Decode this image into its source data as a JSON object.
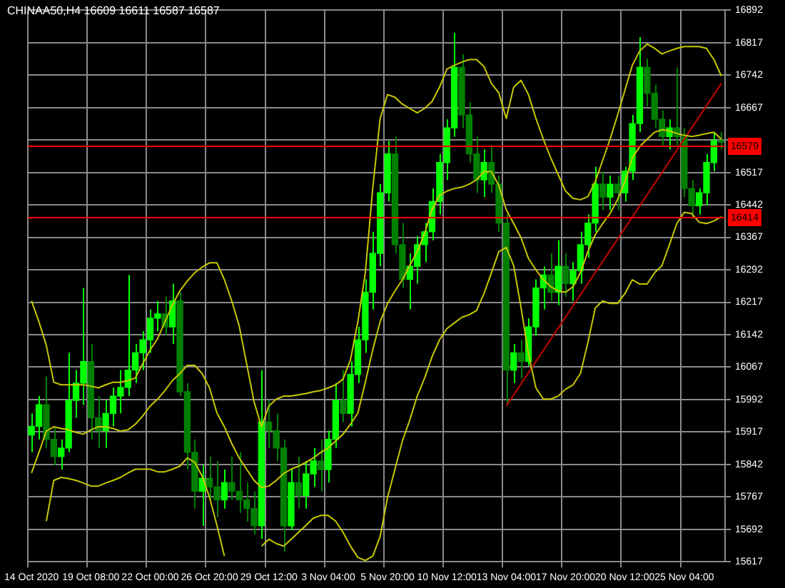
{
  "chart_data": {
    "type": "candlestick",
    "title": "CHINAA50,H4 16609 16611 16587 16587",
    "colors": [
      "#00ff00",
      "#00ff00",
      "#008000",
      "#008000",
      "#00ff00",
      "#00ff00",
      "#00ff00",
      "#00ff00",
      "#008000",
      "#008000",
      "#00ff00",
      "#00ff00",
      "#00ff00",
      "#00ff00",
      "#00ff00",
      "#00ff00",
      "#00ff00",
      "#00ff00",
      "#008000",
      "#00ff00",
      "#008000",
      "#008000",
      "#008000",
      "#00ff00",
      "#008000",
      "#008000",
      "#00ff00",
      "#008000",
      "#008000",
      "#008000",
      "#008000",
      "#00ff00",
      "#008000",
      "#008000",
      "#008000",
      "#00ff00",
      "#008000",
      "#00ff00",
      "#00ff00",
      "#008000",
      "#00ff00",
      "#00ff00",
      "#008000",
      "#00ff00",
      "#00ff00",
      "#00ff00",
      "#00ff00",
      "#00ff00",
      "#00ff00",
      "#008000",
      "#008000",
      "#00ff00",
      "#00ff00",
      "#00ff00",
      "#00ff00",
      "#00ff00",
      "#00ff00",
      "#00ff00",
      "#008000",
      "#008000",
      "#008000",
      "#00ff00",
      "#008000",
      "#008000",
      "#008000",
      "#00ff00",
      "#008000",
      "#00ff00",
      "#00ff00",
      "#00ff00",
      "#008000",
      "#00ff00",
      "#008000",
      "#00ff00",
      "#00ff00",
      "#00ff00",
      "#00ff00",
      "#008000",
      "#00ff00",
      "#008000",
      "#00ff00",
      "#00ff00",
      "#00ff00",
      "#008000",
      "#008000",
      "#008000",
      "#00ff00",
      "#008000",
      "#008000",
      "#008000",
      "#00ff00",
      "#00ff00",
      "#00ff00",
      "#008000"
    ],
    "categories": [
      "14 Oct 2020",
      null,
      null,
      null,
      null,
      null,
      null,
      null,
      "19 Oct 08:00",
      null,
      null,
      null,
      null,
      null,
      null,
      null,
      "22 Oct 00:00",
      null,
      null,
      null,
      null,
      null,
      null,
      null,
      "26 Oct 20:00",
      null,
      null,
      null,
      null,
      null,
      null,
      null,
      "29 Oct 12:00",
      null,
      null,
      null,
      null,
      null,
      null,
      null,
      "3 Nov 04:00",
      null,
      null,
      null,
      null,
      null,
      null,
      null,
      "5 Nov 20:00",
      null,
      null,
      null,
      null,
      null,
      null,
      null,
      "10 Nov 12:00",
      null,
      null,
      null,
      null,
      null,
      null,
      null,
      "13 Nov 04:00",
      null,
      null,
      null,
      null,
      null,
      null,
      null,
      "17 Nov 20:00",
      null,
      null,
      null,
      null,
      null,
      null,
      null,
      "20 Nov 12:00",
      null,
      null,
      null,
      null,
      null,
      null,
      null,
      "25 Nov 04:00",
      null,
      null,
      null,
      null,
      null
    ],
    "ohlc": [
      [
        15910,
        15960,
        15870,
        15930
      ],
      [
        15930,
        16000,
        15900,
        15980
      ],
      [
        15980,
        16045,
        15880,
        15900
      ],
      [
        15900,
        15930,
        15840,
        15860
      ],
      [
        15860,
        15900,
        15830,
        15880
      ],
      [
        15880,
        16100,
        15870,
        15990
      ],
      [
        15990,
        16060,
        15950,
        16030
      ],
      [
        16030,
        16250,
        15980,
        16080
      ],
      [
        16080,
        16120,
        15900,
        15950
      ],
      [
        15950,
        16000,
        15880,
        15920
      ],
      [
        15920,
        15990,
        15880,
        15960
      ],
      [
        15960,
        16020,
        15930,
        16000
      ],
      [
        16000,
        16060,
        15960,
        16020
      ],
      [
        16020,
        16280,
        16000,
        16060
      ],
      [
        16060,
        16120,
        16030,
        16100
      ],
      [
        16100,
        16150,
        16060,
        16130
      ],
      [
        16130,
        16200,
        16100,
        16180
      ],
      [
        16180,
        16220,
        16150,
        16190
      ],
      [
        16190,
        16230,
        16140,
        16160
      ],
      [
        16160,
        16260,
        16120,
        16220
      ],
      [
        16220,
        16240,
        16000,
        16010
      ],
      [
        16010,
        16030,
        15830,
        15870
      ],
      [
        15870,
        15900,
        15740,
        15780
      ],
      [
        15780,
        15840,
        15700,
        15810
      ],
      [
        15810,
        15860,
        15760,
        15790
      ],
      [
        15790,
        15850,
        15720,
        15760
      ],
      [
        15760,
        15830,
        15740,
        15800
      ],
      [
        15800,
        15860,
        15760,
        15780
      ],
      [
        15780,
        15870,
        15730,
        15760
      ],
      [
        15760,
        15800,
        15710,
        15740
      ],
      [
        15740,
        15780,
        15680,
        15700
      ],
      [
        15700,
        16060,
        15670,
        15940
      ],
      [
        15940,
        15990,
        15880,
        15920
      ],
      [
        15920,
        15960,
        15850,
        15880
      ],
      [
        15880,
        15900,
        15640,
        15700
      ],
      [
        15700,
        15830,
        15690,
        15800
      ],
      [
        15800,
        15860,
        15740,
        15770
      ],
      [
        15770,
        15850,
        15740,
        15820
      ],
      [
        15820,
        15880,
        15790,
        15850
      ],
      [
        15850,
        15900,
        15780,
        15830
      ],
      [
        15830,
        15920,
        15800,
        15900
      ],
      [
        15900,
        16030,
        15880,
        15990
      ],
      [
        15990,
        16060,
        15940,
        15960
      ],
      [
        15960,
        16080,
        15930,
        16050
      ],
      [
        16050,
        16160,
        16030,
        16130
      ],
      [
        16130,
        16270,
        16100,
        16240
      ],
      [
        16240,
        16380,
        16200,
        16330
      ],
      [
        16330,
        16490,
        16300,
        16470
      ],
      [
        16470,
        16590,
        16450,
        16560
      ],
      [
        16560,
        16600,
        16330,
        16350
      ],
      [
        16350,
        16400,
        16250,
        16270
      ],
      [
        16270,
        16330,
        16200,
        16300
      ],
      [
        16300,
        16370,
        16260,
        16350
      ],
      [
        16350,
        16400,
        16310,
        16380
      ],
      [
        16380,
        16480,
        16360,
        16450
      ],
      [
        16450,
        16560,
        16420,
        16540
      ],
      [
        16540,
        16640,
        16500,
        16620
      ],
      [
        16620,
        16840,
        16600,
        16760
      ],
      [
        16760,
        16790,
        16620,
        16650
      ],
      [
        16650,
        16680,
        16540,
        16560
      ],
      [
        16560,
        16600,
        16470,
        16500
      ],
      [
        16500,
        16570,
        16460,
        16540
      ],
      [
        16540,
        16580,
        16470,
        16490
      ],
      [
        16490,
        16510,
        16380,
        16400
      ],
      [
        16400,
        16420,
        15980,
        16060
      ],
      [
        16060,
        16120,
        16030,
        16100
      ],
      [
        16100,
        16130,
        16040,
        16080
      ],
      [
        16080,
        16180,
        16070,
        16160
      ],
      [
        16160,
        16270,
        16140,
        16250
      ],
      [
        16250,
        16300,
        16200,
        16280
      ],
      [
        16280,
        16330,
        16220,
        16240
      ],
      [
        16240,
        16360,
        16210,
        16300
      ],
      [
        16300,
        16330,
        16230,
        16260
      ],
      [
        16260,
        16310,
        16220,
        16290
      ],
      [
        16290,
        16380,
        16260,
        16350
      ],
      [
        16350,
        16420,
        16320,
        16400
      ],
      [
        16400,
        16530,
        16380,
        16490
      ],
      [
        16490,
        16520,
        16430,
        16460
      ],
      [
        16460,
        16510,
        16430,
        16490
      ],
      [
        16490,
        16510,
        16430,
        16470
      ],
      [
        16470,
        16530,
        16450,
        16520
      ],
      [
        16520,
        16650,
        16500,
        16630
      ],
      [
        16630,
        16830,
        16610,
        16760
      ],
      [
        16760,
        16780,
        16670,
        16700
      ],
      [
        16700,
        16720,
        16620,
        16640
      ],
      [
        16640,
        16660,
        16580,
        16600
      ],
      [
        16600,
        16640,
        16570,
        16620
      ],
      [
        16620,
        16760,
        16580,
        16600
      ],
      [
        16600,
        16620,
        16460,
        16480
      ],
      [
        16480,
        16500,
        16410,
        16440
      ],
      [
        16440,
        16480,
        16420,
        16470
      ],
      [
        16470,
        16560,
        16440,
        16540
      ],
      [
        16540,
        16610,
        16520,
        16590
      ],
      [
        16590,
        16611,
        16570,
        16587
      ]
    ],
    "series": [
      {
        "type": "line",
        "color": "#c8c800",
        "values": [
          16220,
          16172,
          16117,
          16032,
          16026,
          16026,
          16026,
          16026,
          16023,
          16019,
          16026,
          16032,
          16032,
          16036,
          16042,
          16075,
          16107,
          16133,
          16172,
          16211,
          16243,
          16266,
          16285,
          16298,
          16308,
          16308,
          16269,
          16220,
          16162,
          16075,
          15987,
          15929,
          15977,
          15993,
          16000,
          16000,
          16003,
          16006,
          16010,
          16013,
          16019,
          16026,
          16039,
          16084,
          16172,
          16285,
          16480,
          16642,
          16697,
          16691,
          16675,
          16665,
          16655,
          16665,
          16681,
          16714,
          16756,
          16765,
          16772,
          16778,
          16778,
          16762,
          16723,
          16701,
          16642,
          16714,
          16730,
          16697,
          16642,
          16594,
          16551,
          16512,
          16474,
          16457,
          16454,
          16461,
          16496,
          16545,
          16594,
          16649,
          16707,
          16765,
          16798,
          16814,
          16804,
          16791,
          16798,
          16804,
          16808,
          16808,
          16808,
          16804,
          16778,
          16740
        ]
      },
      {
        "type": "line",
        "color": "#c8c800",
        "values": [
          15822,
          15870,
          15919,
          15929,
          15925,
          15922,
          15916,
          15912,
          15922,
          15929,
          15929,
          15925,
          15919,
          15922,
          15935,
          15954,
          15977,
          15993,
          16013,
          16036,
          16052,
          16071,
          16071,
          16052,
          16019,
          15961,
          15929,
          15890,
          15857,
          15831,
          15805,
          15789,
          15792,
          15805,
          15821,
          15831,
          15838,
          15847,
          15857,
          15870,
          15880,
          15896,
          15912,
          15935,
          15961,
          16032,
          16107,
          16172,
          16214,
          16243,
          16269,
          16302,
          16334,
          16376,
          16431,
          16464,
          16474,
          16480,
          16483,
          16490,
          16500,
          16519,
          16519,
          16487,
          16431,
          16399,
          16366,
          16318,
          16292,
          16269,
          16253,
          16243,
          16240,
          16253,
          16285,
          16334,
          16373,
          16399,
          16422,
          16454,
          16496,
          16551,
          16577,
          16594,
          16610,
          16616,
          16613,
          16607,
          16603,
          16600,
          16603,
          16607,
          16610,
          16594
        ]
      },
      {
        "type": "line",
        "color": "#c8c800",
        "values": [
          null,
          null,
          15711,
          15805,
          15812,
          15809,
          15805,
          15799,
          15792,
          15792,
          15799,
          15805,
          15812,
          15822,
          15831,
          15831,
          15831,
          15825,
          15825,
          15831,
          15838,
          15857,
          15847,
          15815,
          15766,
          15701,
          15630,
          null,
          null,
          null,
          null,
          15653,
          15669,
          15659,
          15653,
          15669,
          15685,
          15701,
          15718,
          15724,
          15724,
          15711,
          15685,
          15653,
          15627,
          15620,
          15630,
          15675,
          15766,
          15831,
          15896,
          15945,
          16000,
          16042,
          16091,
          16130,
          16156,
          16169,
          16182,
          16188,
          16198,
          16237,
          16285,
          16334,
          16344,
          16302,
          16204,
          16097,
          16019,
          15993,
          15993,
          16000,
          16016,
          16026,
          16052,
          16123,
          16204,
          16220,
          16214,
          16214,
          16237,
          16269,
          16259,
          16259,
          16285,
          16302,
          16350,
          16399,
          16425,
          16422,
          16402,
          16399,
          16405,
          16415
        ]
      },
      {
        "type": "line",
        "color": "#c80000",
        "values": [
          null,
          null,
          null,
          null,
          null,
          null,
          null,
          null,
          null,
          null,
          null,
          null,
          null,
          null,
          null,
          null,
          null,
          null,
          null,
          null,
          null,
          null,
          null,
          null,
          null,
          null,
          null,
          null,
          null,
          null,
          null,
          null,
          null,
          null,
          null,
          null,
          null,
          null,
          null,
          null,
          null,
          null,
          null,
          null,
          null,
          null,
          null,
          null,
          null,
          null,
          null,
          null,
          null,
          null,
          null,
          null,
          null,
          null,
          null,
          null,
          null,
          null,
          null,
          null,
          15977,
          null,
          null,
          null,
          null,
          null,
          null,
          null,
          null,
          null,
          null,
          null,
          null,
          null,
          null,
          null,
          null,
          null,
          null,
          null,
          null,
          null,
          null,
          null,
          null,
          null,
          null,
          null,
          null,
          16723
        ]
      }
    ],
    "ylim": [
      15617,
      16892
    ],
    "yticks": [
      15617,
      15692,
      15767,
      15842,
      15917,
      15992,
      16067,
      16142,
      16217,
      16292,
      16367,
      16442,
      16517,
      {
        "value": 16592,
        "label": null
      },
      16667,
      16742,
      16817,
      16892
    ],
    "ref_lines": [
      {
        "axis": "y",
        "value": 16579,
        "label": "16579",
        "color": "#ff0000"
      },
      {
        "axis": "y",
        "value": 16414,
        "label": "16414",
        "color": "#ff0000"
      }
    ],
    "grid": true,
    "legend": false
  }
}
